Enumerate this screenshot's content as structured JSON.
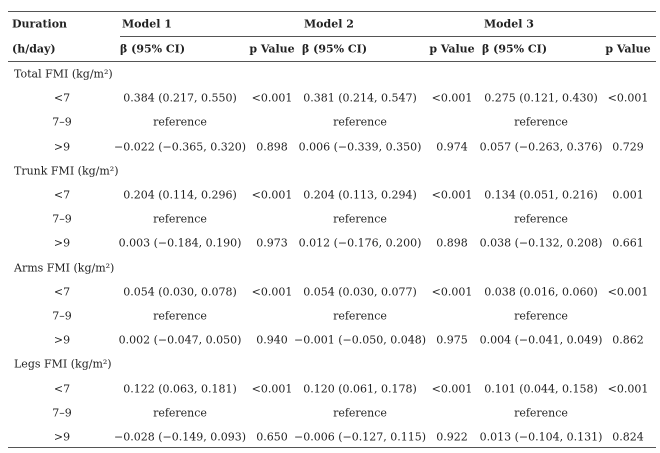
{
  "header": {
    "duration": "Duration",
    "unit": "(h/day)",
    "models": [
      {
        "name": "Model 1",
        "ci": "β (95% CI)",
        "p": "p Value"
      },
      {
        "name": "Model 2",
        "ci": "β (95% CI)",
        "p": "p Value"
      },
      {
        "name": "Model 3",
        "ci": "β (95% CI)",
        "p": "p Value"
      }
    ]
  },
  "groups": [
    {
      "title": "Total FMI (kg/m²)",
      "rows": [
        {
          "duration": "<7",
          "models": [
            {
              "ci": "0.384 (0.217, 0.550)",
              "p": "<0.001"
            },
            {
              "ci": "0.381 (0.214, 0.547)",
              "p": "<0.001"
            },
            {
              "ci": "0.275 (0.121, 0.430)",
              "p": "<0.001"
            }
          ]
        },
        {
          "duration": "7–9",
          "models": [
            {
              "ci": "reference"
            },
            {
              "ci": "reference"
            },
            {
              "ci": "reference"
            }
          ]
        },
        {
          "duration": ">9",
          "models": [
            {
              "ci": "−0.022 (−0.365, 0.320)",
              "p": "0.898"
            },
            {
              "ci": "0.006 (−0.339, 0.350)",
              "p": "0.974"
            },
            {
              "ci": "0.057 (−0.263, 0.376)",
              "p": "0.729"
            }
          ]
        }
      ]
    },
    {
      "title": "Trunk FMI (kg/m²)",
      "rows": [
        {
          "duration": "<7",
          "models": [
            {
              "ci": "0.204 (0.114, 0.296)",
              "p": "<0.001"
            },
            {
              "ci": "0.204 (0.113, 0.294)",
              "p": "<0.001"
            },
            {
              "ci": "0.134 (0.051, 0.216)",
              "p": "0.001"
            }
          ]
        },
        {
          "duration": "7–9",
          "models": [
            {
              "ci": "reference"
            },
            {
              "ci": "reference"
            },
            {
              "ci": "reference"
            }
          ]
        },
        {
          "duration": ">9",
          "models": [
            {
              "ci": "0.003 (−0.184, 0.190)",
              "p": "0.973"
            },
            {
              "ci": "0.012 (−0.176, 0.200)",
              "p": "0.898"
            },
            {
              "ci": "0.038 (−0.132, 0.208)",
              "p": "0.661"
            }
          ]
        }
      ]
    },
    {
      "title": "Arms FMI (kg/m²)",
      "rows": [
        {
          "duration": "<7",
          "models": [
            {
              "ci": "0.054 (0.030, 0.078)",
              "p": "<0.001"
            },
            {
              "ci": "0.054 (0.030, 0.077)",
              "p": "<0.001"
            },
            {
              "ci": "0.038 (0.016, 0.060)",
              "p": "<0.001"
            }
          ]
        },
        {
          "duration": "7–9",
          "models": [
            {
              "ci": "reference"
            },
            {
              "ci": "reference"
            },
            {
              "ci": "reference"
            }
          ]
        },
        {
          "duration": ">9",
          "models": [
            {
              "ci": "0.002 (−0.047, 0.050)",
              "p": "0.940"
            },
            {
              "ci": "−0.001 (−0.050, 0.048)",
              "p": "0.975"
            },
            {
              "ci": "0.004 (−0.041, 0.049)",
              "p": "0.862"
            }
          ]
        }
      ]
    },
    {
      "title": "Legs FMI (kg/m²)",
      "rows": [
        {
          "duration": "<7",
          "models": [
            {
              "ci": "0.122 (0.063, 0.181)",
              "p": "<0.001"
            },
            {
              "ci": "0.120 (0.061, 0.178)",
              "p": "<0.001"
            },
            {
              "ci": "0.101 (0.044, 0.158)",
              "p": "<0.001"
            }
          ]
        },
        {
          "duration": "7–9",
          "models": [
            {
              "ci": "reference"
            },
            {
              "ci": "reference"
            },
            {
              "ci": "reference"
            }
          ]
        },
        {
          "duration": ">9",
          "models": [
            {
              "ci": "−0.028 (−0.149, 0.093)",
              "p": "0.650"
            },
            {
              "ci": "−0.006 (−0.127, 0.115)",
              "p": "0.922"
            },
            {
              "ci": "0.013 (−0.104, 0.131)",
              "p": "0.824"
            }
          ]
        }
      ]
    }
  ]
}
